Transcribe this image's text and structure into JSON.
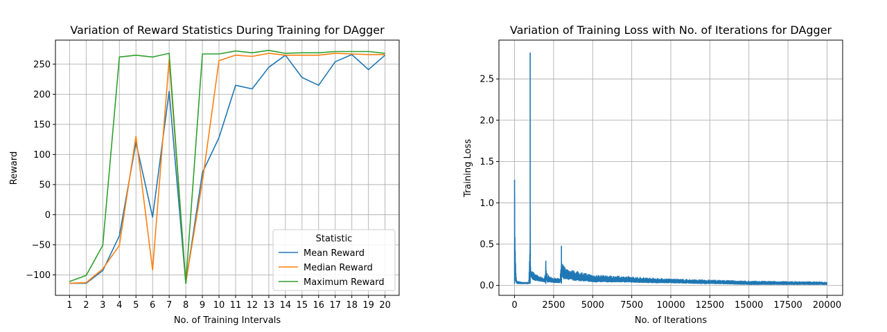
{
  "chart_data": [
    {
      "type": "line",
      "title": "Variation of Reward Statistics During Training for DAgger",
      "xlabel": "No. of Training Intervals",
      "ylabel": "Reward",
      "x": [
        1,
        2,
        3,
        4,
        5,
        6,
        7,
        8,
        9,
        10,
        11,
        12,
        13,
        14,
        15,
        16,
        17,
        18,
        19,
        20
      ],
      "xticks": [
        1,
        2,
        3,
        4,
        5,
        6,
        7,
        8,
        9,
        10,
        11,
        12,
        13,
        14,
        15,
        16,
        17,
        18,
        19,
        20
      ],
      "yticks": [
        -100,
        -50,
        0,
        50,
        100,
        150,
        200,
        250
      ],
      "xlim": [
        0.15,
        20.85
      ],
      "ylim": [
        -134,
        290
      ],
      "grid": true,
      "legend": {
        "title": "Statistic",
        "placement": "lower-right"
      },
      "series": [
        {
          "name": "Mean Reward",
          "color": "#1f77b4",
          "values": [
            -114,
            -114,
            -93,
            -35,
            120,
            -4,
            205,
            -114,
            70,
            128,
            215,
            209,
            245,
            265,
            228,
            215,
            254,
            266,
            241,
            265
          ]
        },
        {
          "name": "Median Reward",
          "color": "#ff7f0e",
          "values": [
            -114,
            -113,
            -90,
            -51,
            130,
            -92,
            258,
            -113,
            55,
            256,
            265,
            263,
            268,
            265,
            265,
            265,
            268,
            267,
            266,
            266
          ]
        },
        {
          "name": "Maximum Reward",
          "color": "#2ca02c",
          "values": [
            -111,
            -101,
            -51,
            262,
            265,
            262,
            268,
            -114,
            267,
            267,
            272,
            269,
            273,
            268,
            269,
            269,
            271,
            271,
            271,
            268
          ]
        }
      ]
    },
    {
      "type": "line",
      "title": "Variation of Training Loss with No. of Iterations for DAgger",
      "xlabel": "No. of Iterations",
      "ylabel": "Training Loss",
      "xticks": [
        0,
        2500,
        5000,
        7500,
        10000,
        12500,
        15000,
        17500,
        20000
      ],
      "yticks": [
        0.0,
        0.5,
        1.0,
        1.5,
        2.0,
        2.5
      ],
      "xlim": [
        -1000,
        21000
      ],
      "ylim": [
        -0.12,
        2.97
      ],
      "grid": true,
      "series": [
        {
          "name": "",
          "color": "#1f77b4",
          "x": [
            0,
            30,
            60,
            100,
            150,
            200,
            300,
            500,
            700,
            900,
            990,
            1000,
            1010,
            1030,
            1060,
            1100,
            1300,
            1600,
            1900,
            1980,
            2000,
            2030,
            2100,
            2300,
            2600,
            2900,
            2990,
            3000,
            3020,
            3060,
            3150,
            3400,
            3800,
            4500,
            5000,
            6000,
            7000,
            8000,
            9000,
            10000,
            11000,
            12000,
            13000,
            14000,
            15000,
            16000,
            17000,
            18000,
            19000,
            20000
          ],
          "values": [
            1.28,
            0.85,
            0.35,
            0.12,
            0.06,
            0.05,
            0.05,
            0.04,
            0.04,
            0.04,
            0.5,
            2.82,
            1.2,
            0.28,
            0.2,
            0.18,
            0.14,
            0.11,
            0.09,
            0.18,
            0.3,
            0.2,
            0.14,
            0.1,
            0.09,
            0.08,
            0.3,
            0.48,
            0.33,
            0.28,
            0.24,
            0.2,
            0.18,
            0.15,
            0.13,
            0.12,
            0.11,
            0.1,
            0.09,
            0.08,
            0.075,
            0.07,
            0.065,
            0.06,
            0.055,
            0.052,
            0.05,
            0.048,
            0.046,
            0.045
          ],
          "low": [
            0.8,
            0.1,
            0.04,
            0.03,
            0.02,
            0.02,
            0.02,
            0.02,
            0.02,
            0.02,
            0.02,
            0.02,
            0.1,
            0.12,
            0.1,
            0.08,
            0.06,
            0.05,
            0.04,
            0.04,
            0.05,
            0.05,
            0.04,
            0.04,
            0.03,
            0.03,
            0.03,
            0.08,
            0.1,
            0.09,
            0.08,
            0.07,
            0.06,
            0.05,
            0.04,
            0.04,
            0.04,
            0.035,
            0.03,
            0.03,
            0.025,
            0.02,
            0.02,
            0.015,
            0.01,
            0.01,
            0.01,
            0.01,
            0.01,
            0.01
          ]
        }
      ]
    }
  ]
}
